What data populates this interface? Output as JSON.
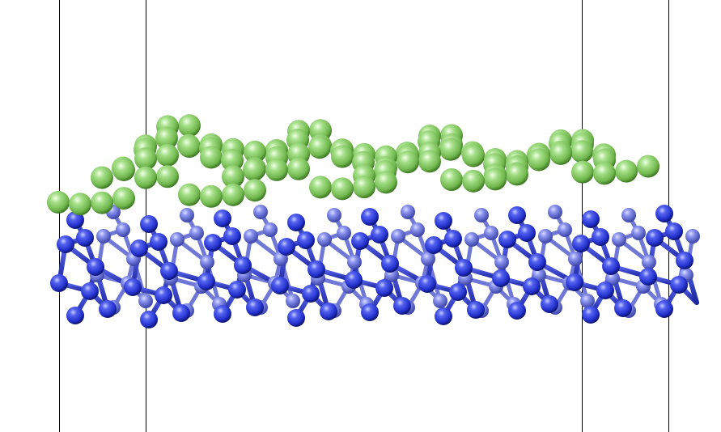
{
  "scene": {
    "subject": "atomic-slab-side-view",
    "background_color": "#ffffff",
    "cell_line_color": "#000000",
    "layers": [
      {
        "element_role": "substrate",
        "color": "#2a35d8",
        "highlight": "#b9c2ff"
      },
      {
        "element_role": "adsorbate",
        "color": "#7fc85a",
        "highlight": "#eaffde"
      }
    ]
  }
}
